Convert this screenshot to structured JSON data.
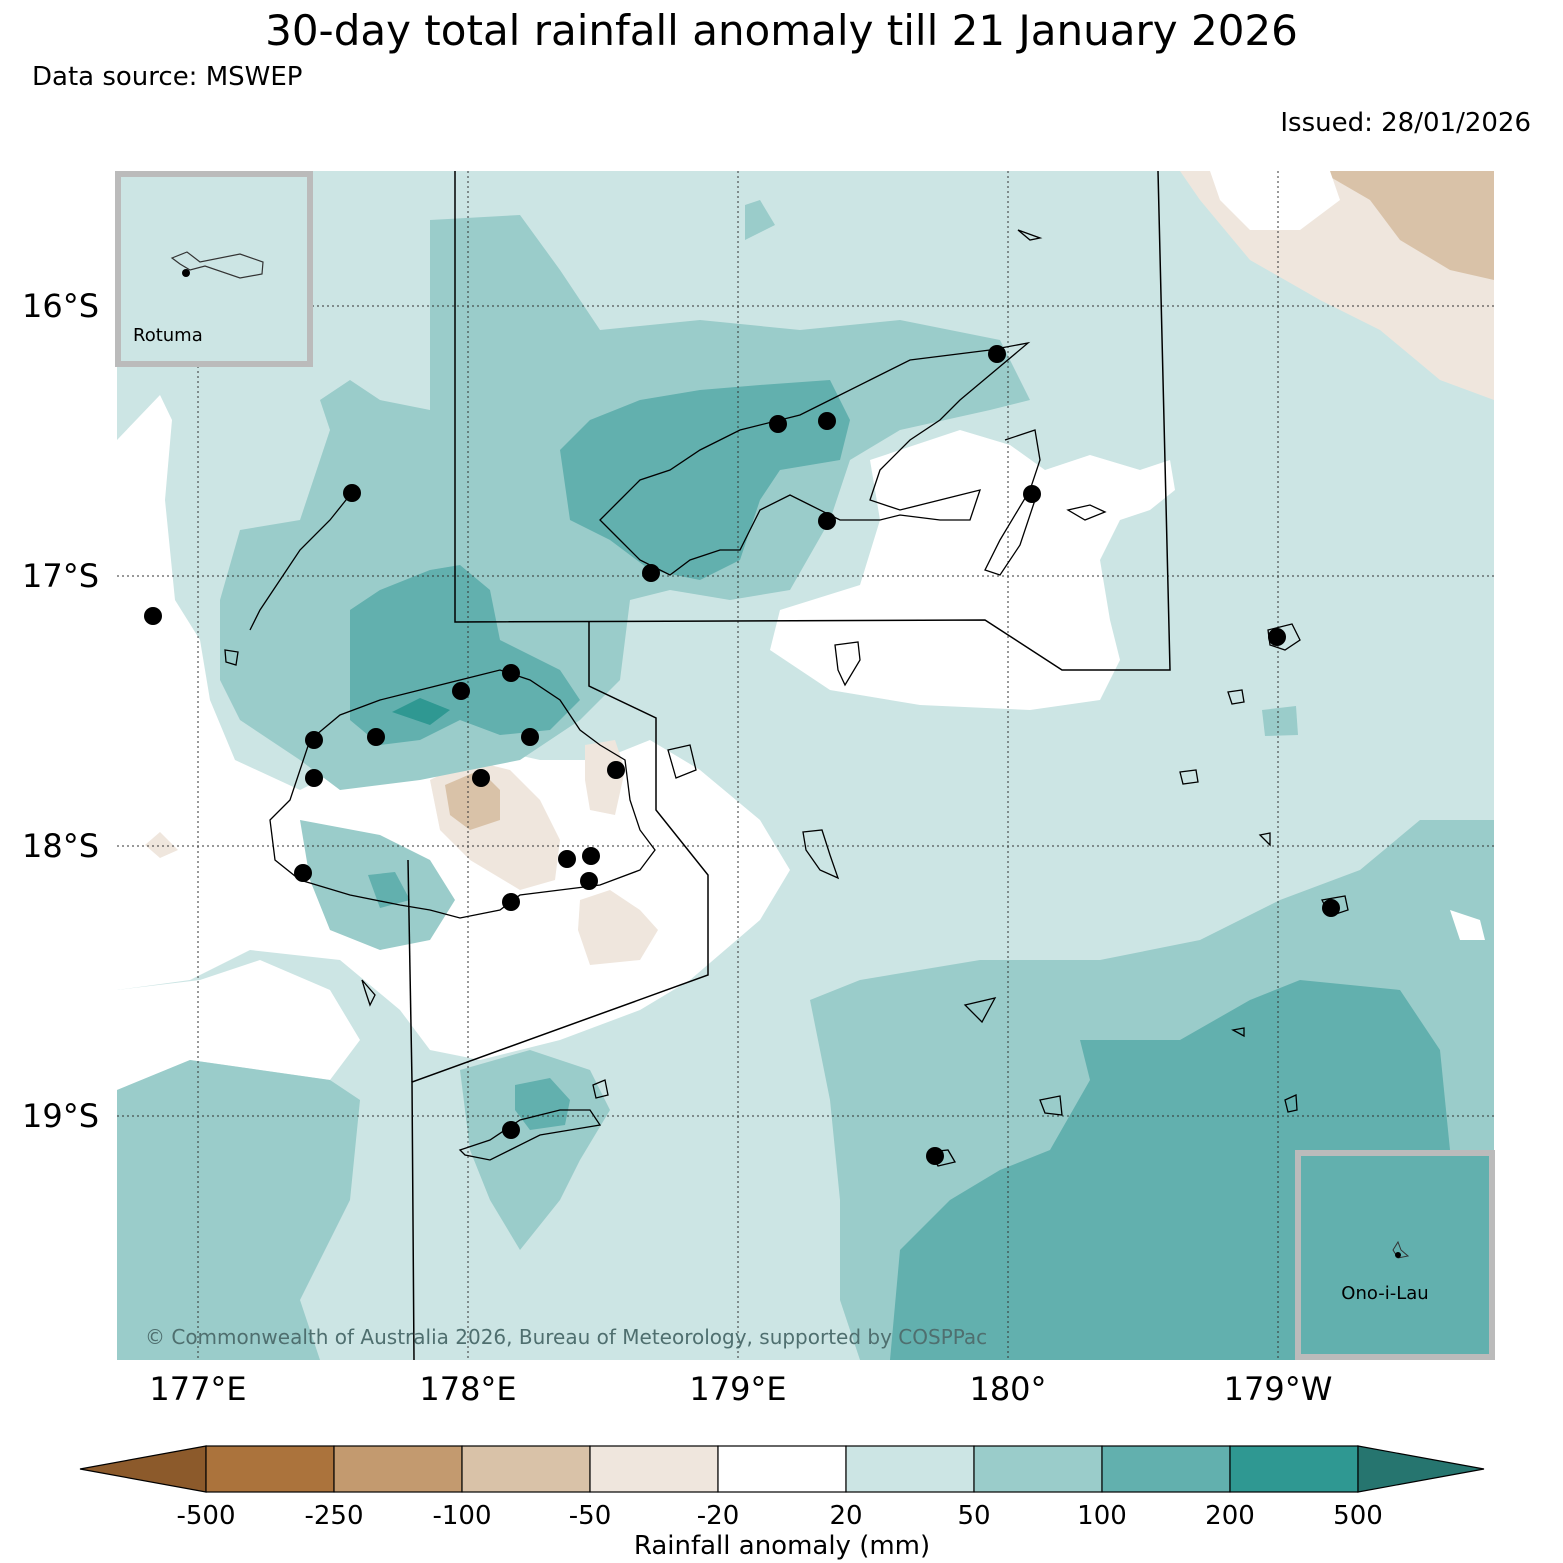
{
  "header": {
    "title": "30-day total rainfall anomaly till 21 January 2026",
    "source": "Data source: MSWEP",
    "issued": "Issued: 28/01/2026"
  },
  "map": {
    "lat_labels": [
      "16°S",
      "17°S",
      "18°S",
      "19°S"
    ],
    "lon_labels": [
      "177°E",
      "178°E",
      "179°E",
      "180°",
      "179°W"
    ],
    "insets": {
      "rotuma": "Rotuma",
      "ono": "Ono-i-Lau"
    },
    "copyright": "© Commonwealth of Australia 2026, Bureau of Meteorology, supported by COSPPac"
  },
  "colorbar": {
    "ticks": [
      "-500",
      "-250",
      "-100",
      "-50",
      "-20",
      "20",
      "50",
      "100",
      "200",
      "500"
    ],
    "label": "Rainfall anomaly (mm)",
    "colors": [
      "#8c5a2b",
      "#ab733c",
      "#c39a6f",
      "#d9c2a8",
      "#efe6dd",
      "#ffffff",
      "#cce5e4",
      "#9accca",
      "#62b0ae",
      "#2f9892",
      "#26756f"
    ]
  },
  "colors": {
    "c20": "#cce5e4",
    "c50": "#9accca",
    "c100": "#62b0ae",
    "c200": "#2f9892",
    "cn20": "#efe6dd",
    "cn50": "#d9c2a8"
  }
}
